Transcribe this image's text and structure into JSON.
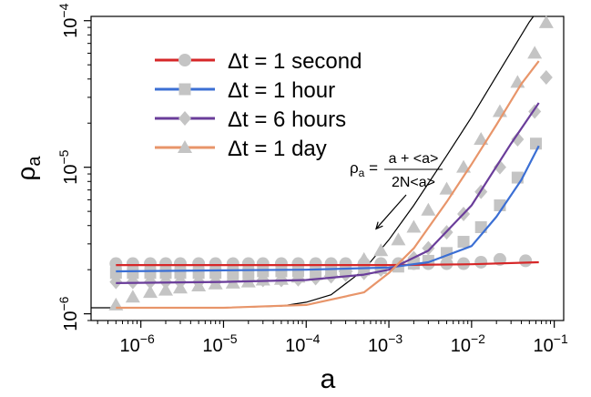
{
  "chart_data": {
    "type": "scatter",
    "title": "",
    "xlabel": "a",
    "ylabel": "ρ",
    "ylabel_sub": "a",
    "x_scale": "log",
    "y_scale": "log",
    "xlim": [
      2.5e-07,
      0.13
    ],
    "ylim": [
      9e-07,
      0.000107
    ],
    "grid": false,
    "legend_position": "top-left",
    "x_ticks": [
      {
        "value": 1e-06,
        "base": "10",
        "exp": "−6"
      },
      {
        "value": 1e-05,
        "base": "10",
        "exp": "−5"
      },
      {
        "value": 0.0001,
        "base": "10",
        "exp": "−4"
      },
      {
        "value": 0.001,
        "base": "10",
        "exp": "−3"
      },
      {
        "value": 0.01,
        "base": "10",
        "exp": "−2"
      },
      {
        "value": 0.1,
        "base": "10",
        "exp": "−1"
      }
    ],
    "y_ticks": [
      {
        "value": 1e-06,
        "base": "10",
        "exp": "−6"
      },
      {
        "value": 1e-05,
        "base": "10",
        "exp": "−5"
      },
      {
        "value": 0.0001,
        "base": "10",
        "exp": "−4"
      }
    ],
    "series": [
      {
        "name": "Δt = 1 second",
        "color": "#d62728",
        "marker": "circle",
        "points": [
          [
            5e-07,
            2.2e-06
          ],
          [
            8e-07,
            2.2e-06
          ],
          [
            1.3e-06,
            2.2e-06
          ],
          [
            2e-06,
            2.2e-06
          ],
          [
            3e-06,
            2.2e-06
          ],
          [
            5e-06,
            2.2e-06
          ],
          [
            8e-06,
            2.2e-06
          ],
          [
            1.3e-05,
            2.2e-06
          ],
          [
            2e-05,
            2.2e-06
          ],
          [
            3e-05,
            2.2e-06
          ],
          [
            5e-05,
            2.2e-06
          ],
          [
            8e-05,
            2.2e-06
          ],
          [
            0.00013,
            2.2e-06
          ],
          [
            0.0002,
            2.2e-06
          ],
          [
            0.0003,
            2.2e-06
          ],
          [
            0.0005,
            2.2e-06
          ],
          [
            0.0008,
            2.2e-06
          ],
          [
            0.0013,
            2.2e-06
          ],
          [
            0.002,
            2.2e-06
          ],
          [
            0.003,
            2.2e-06
          ],
          [
            0.005,
            2.2e-06
          ],
          [
            0.008,
            2.2e-06
          ],
          [
            0.013,
            2.25e-06
          ],
          [
            0.022,
            2.35e-06
          ],
          [
            0.045,
            2.3e-06
          ]
        ],
        "fit": [
          [
            5e-07,
            2.15e-06
          ],
          [
            0.0001,
            2.15e-06
          ],
          [
            0.001,
            2.15e-06
          ],
          [
            0.01,
            2.18e-06
          ],
          [
            0.065,
            2.25e-06
          ]
        ]
      },
      {
        "name": "Δt = 1 hour",
        "color": "#3b6fd4",
        "marker": "square",
        "points": [
          [
            5e-07,
            1.9e-06
          ],
          [
            8e-07,
            1.9e-06
          ],
          [
            1.3e-06,
            1.9e-06
          ],
          [
            2e-06,
            1.9e-06
          ],
          [
            3e-06,
            1.9e-06
          ],
          [
            5e-06,
            1.9e-06
          ],
          [
            8e-06,
            1.9e-06
          ],
          [
            1.3e-05,
            1.9e-06
          ],
          [
            2e-05,
            1.9e-06
          ],
          [
            3e-05,
            1.95e-06
          ],
          [
            5e-05,
            1.95e-06
          ],
          [
            8e-05,
            1.95e-06
          ],
          [
            0.00013,
            1.95e-06
          ],
          [
            0.0002,
            1.95e-06
          ],
          [
            0.0003,
            2e-06
          ],
          [
            0.0005,
            2e-06
          ],
          [
            0.0008,
            2.05e-06
          ],
          [
            0.0013,
            2.1e-06
          ],
          [
            0.002,
            2.2e-06
          ],
          [
            0.003,
            2.3e-06
          ],
          [
            0.005,
            2.6e-06
          ],
          [
            0.008,
            3.1e-06
          ],
          [
            0.013,
            3.9e-06
          ],
          [
            0.022,
            5.5e-06
          ],
          [
            0.036,
            8.5e-06
          ],
          [
            0.06,
            1.45e-05
          ]
        ],
        "fit": [
          [
            5e-07,
            1.95e-06
          ],
          [
            1e-05,
            1.98e-06
          ],
          [
            0.0001,
            2e-06
          ],
          [
            0.001,
            2.07e-06
          ],
          [
            0.003,
            2.25e-06
          ],
          [
            0.01,
            2.9e-06
          ],
          [
            0.02,
            4.6e-06
          ],
          [
            0.04,
            8.2e-06
          ],
          [
            0.065,
            1.4e-05
          ]
        ]
      },
      {
        "name": "Δt = 6 hours",
        "color": "#6a3d9a",
        "marker": "diamond",
        "points": [
          [
            5e-07,
            1.65e-06
          ],
          [
            8e-07,
            1.65e-06
          ],
          [
            1.3e-06,
            1.65e-06
          ],
          [
            2e-06,
            1.65e-06
          ],
          [
            3e-06,
            1.65e-06
          ],
          [
            5e-06,
            1.65e-06
          ],
          [
            8e-06,
            1.65e-06
          ],
          [
            1.3e-05,
            1.7e-06
          ],
          [
            2e-05,
            1.7e-06
          ],
          [
            3e-05,
            1.7e-06
          ],
          [
            5e-05,
            1.7e-06
          ],
          [
            8e-05,
            1.72e-06
          ],
          [
            0.00013,
            1.75e-06
          ],
          [
            0.0002,
            1.8e-06
          ],
          [
            0.0003,
            1.85e-06
          ],
          [
            0.0005,
            1.9e-06
          ],
          [
            0.0008,
            2e-06
          ],
          [
            0.0013,
            2.15e-06
          ],
          [
            0.002,
            2.4e-06
          ],
          [
            0.003,
            2.8e-06
          ],
          [
            0.005,
            3.6e-06
          ],
          [
            0.008,
            4.8e-06
          ],
          [
            0.013,
            6.8e-06
          ],
          [
            0.022,
            1e-05
          ],
          [
            0.036,
            1.55e-05
          ],
          [
            0.058,
            2.4e-05
          ],
          [
            0.08,
            4.1e-05
          ]
        ],
        "fit": [
          [
            5e-07,
            1.62e-06
          ],
          [
            1e-05,
            1.65e-06
          ],
          [
            0.0001,
            1.7e-06
          ],
          [
            0.0005,
            1.85e-06
          ],
          [
            0.001,
            2e-06
          ],
          [
            0.003,
            2.7e-06
          ],
          [
            0.01,
            5.5e-06
          ],
          [
            0.03,
            1.45e-05
          ],
          [
            0.065,
            2.75e-05
          ]
        ]
      },
      {
        "name": "Δt = 1 day",
        "color": "#e8956a",
        "marker": "triangle",
        "points": [
          [
            5e-07,
            1.15e-06
          ],
          [
            8e-07,
            1.3e-06
          ],
          [
            1.3e-06,
            1.4e-06
          ],
          [
            2e-06,
            1.45e-06
          ],
          [
            3e-06,
            1.5e-06
          ],
          [
            5e-06,
            1.55e-06
          ],
          [
            8e-06,
            1.6e-06
          ],
          [
            1.3e-05,
            1.62e-06
          ],
          [
            2e-05,
            1.65e-06
          ],
          [
            3e-05,
            1.7e-06
          ],
          [
            5e-05,
            1.72e-06
          ],
          [
            8e-05,
            1.78e-06
          ],
          [
            0.00013,
            1.85e-06
          ],
          [
            0.0002,
            1.95e-06
          ],
          [
            0.0003,
            2.1e-06
          ],
          [
            0.0005,
            2.35e-06
          ],
          [
            0.0008,
            2.7e-06
          ],
          [
            0.0013,
            3.2e-06
          ],
          [
            0.002,
            3.9e-06
          ],
          [
            0.003,
            5.1e-06
          ],
          [
            0.005,
            7.1e-06
          ],
          [
            0.008,
            1e-05
          ],
          [
            0.013,
            1.55e-05
          ],
          [
            0.022,
            2.4e-05
          ],
          [
            0.036,
            3.8e-05
          ],
          [
            0.058,
            6e-05
          ],
          [
            0.08,
            9.7e-05
          ]
        ],
        "fit": [
          [
            5e-07,
            1.1e-06
          ],
          [
            1e-05,
            1.1e-06
          ],
          [
            0.0001,
            1.15e-06
          ],
          [
            0.0005,
            1.4e-06
          ],
          [
            0.001,
            1.9e-06
          ],
          [
            0.002,
            2.8e-06
          ],
          [
            0.005,
            5.8e-06
          ],
          [
            0.01,
            1.05e-05
          ],
          [
            0.02,
            1.95e-05
          ],
          [
            0.04,
            3.7e-05
          ],
          [
            0.065,
            5.3e-05
          ]
        ]
      }
    ],
    "reference_curve": {
      "color": "#000000",
      "points": [
        [
          2.5e-07,
          1.1e-06
        ],
        [
          1e-05,
          1.1e-06
        ],
        [
          5e-05,
          1.13e-06
        ],
        [
          0.0001,
          1.2e-06
        ],
        [
          0.0002,
          1.35e-06
        ],
        [
          0.0005,
          2e-06
        ],
        [
          0.001,
          3.2e-06
        ],
        [
          0.002,
          5.5e-06
        ],
        [
          0.005,
          1.2e-05
        ],
        [
          0.01,
          2.2e-05
        ],
        [
          0.02,
          4.2e-05
        ],
        [
          0.05,
          9.8e-05
        ],
        [
          0.056,
          0.000107
        ]
      ]
    },
    "annotation": {
      "lhs": "ρ",
      "lhs_sub": "a",
      "numerator": "a + <a>",
      "denominator": "2N<a>",
      "arrow_target": [
        0.0007,
        3.8e-06
      ]
    }
  }
}
